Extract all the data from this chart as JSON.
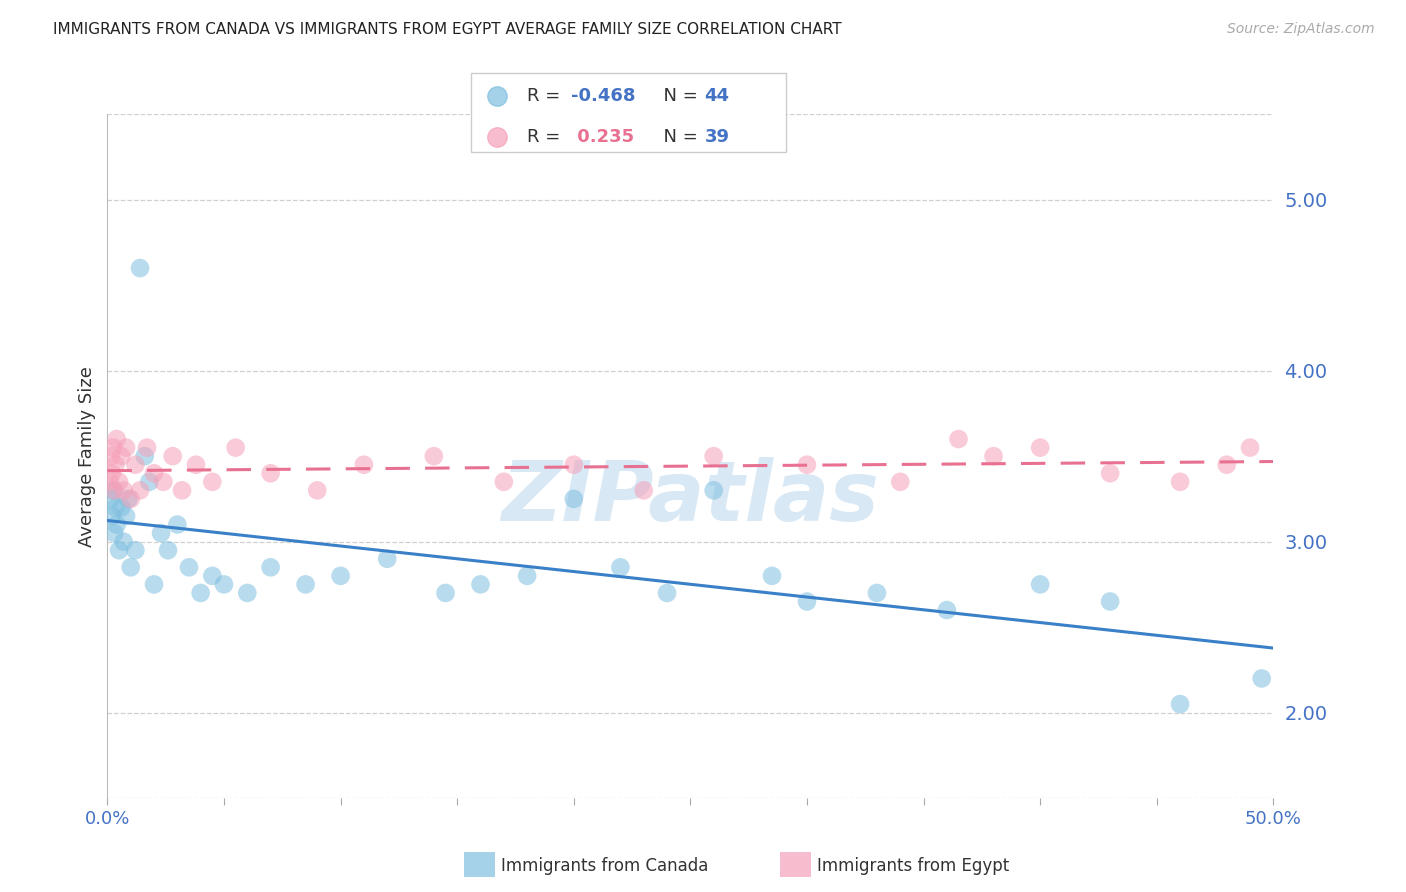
{
  "title": "IMMIGRANTS FROM CANADA VS IMMIGRANTS FROM EGYPT AVERAGE FAMILY SIZE CORRELATION CHART",
  "source": "Source: ZipAtlas.com",
  "ylabel": "Average Family Size",
  "right_yticks": [
    2.0,
    3.0,
    4.0,
    5.0
  ],
  "canada_x": [
    0.15,
    0.2,
    0.25,
    0.3,
    0.35,
    0.4,
    0.5,
    0.6,
    0.7,
    0.8,
    0.9,
    1.0,
    1.2,
    1.4,
    1.6,
    1.8,
    2.0,
    2.3,
    2.6,
    3.0,
    3.5,
    4.0,
    4.5,
    5.0,
    6.0,
    7.0,
    8.5,
    10.0,
    12.0,
    14.5,
    16.0,
    18.0,
    20.0,
    22.0,
    24.0,
    26.0,
    28.5,
    30.0,
    33.0,
    36.0,
    40.0,
    43.0,
    46.0,
    49.5
  ],
  "canada_y": [
    3.25,
    3.15,
    3.3,
    3.05,
    3.2,
    3.1,
    2.95,
    3.2,
    3.0,
    3.15,
    3.25,
    2.85,
    2.95,
    4.6,
    3.5,
    3.35,
    2.75,
    3.05,
    2.95,
    3.1,
    2.85,
    2.7,
    2.8,
    2.75,
    2.7,
    2.85,
    2.75,
    2.8,
    2.9,
    2.7,
    2.75,
    2.8,
    3.25,
    2.85,
    2.7,
    3.3,
    2.8,
    2.65,
    2.7,
    2.6,
    2.75,
    2.65,
    2.05,
    2.2
  ],
  "egypt_x": [
    0.1,
    0.15,
    0.2,
    0.25,
    0.3,
    0.35,
    0.4,
    0.5,
    0.6,
    0.7,
    0.8,
    1.0,
    1.2,
    1.4,
    1.7,
    2.0,
    2.4,
    2.8,
    3.2,
    3.8,
    4.5,
    5.5,
    7.0,
    9.0,
    11.0,
    14.0,
    17.0,
    20.0,
    23.0,
    26.0,
    30.0,
    34.0,
    36.5,
    38.0,
    40.0,
    43.0,
    46.0,
    48.0,
    49.0
  ],
  "egypt_y": [
    3.35,
    3.5,
    3.4,
    3.55,
    3.3,
    3.45,
    3.6,
    3.35,
    3.5,
    3.3,
    3.55,
    3.25,
    3.45,
    3.3,
    3.55,
    3.4,
    3.35,
    3.5,
    3.3,
    3.45,
    3.35,
    3.55,
    3.4,
    3.3,
    3.45,
    3.5,
    3.35,
    3.45,
    3.3,
    3.5,
    3.45,
    3.35,
    3.6,
    3.5,
    3.55,
    3.4,
    3.35,
    3.45,
    3.55
  ],
  "canada_color": "#7fbfdf",
  "egypt_color": "#f5a0b8",
  "canada_line_color": "#3a80c8",
  "egypt_line_color": "#e87090",
  "background_color": "#ffffff",
  "title_color": "#222222",
  "axis_color": "#4472c4",
  "grid_color": "#d0d0d0",
  "watermark": "ZIPatlas",
  "watermark_color": "#d8e8f5",
  "xlim": [
    0.0,
    50.0
  ],
  "ylim": [
    1.5,
    5.5
  ],
  "legend_r_canada_color": "#4472c4",
  "legend_r_egypt_color": "#e87090",
  "legend_n_color": "#4472c4"
}
